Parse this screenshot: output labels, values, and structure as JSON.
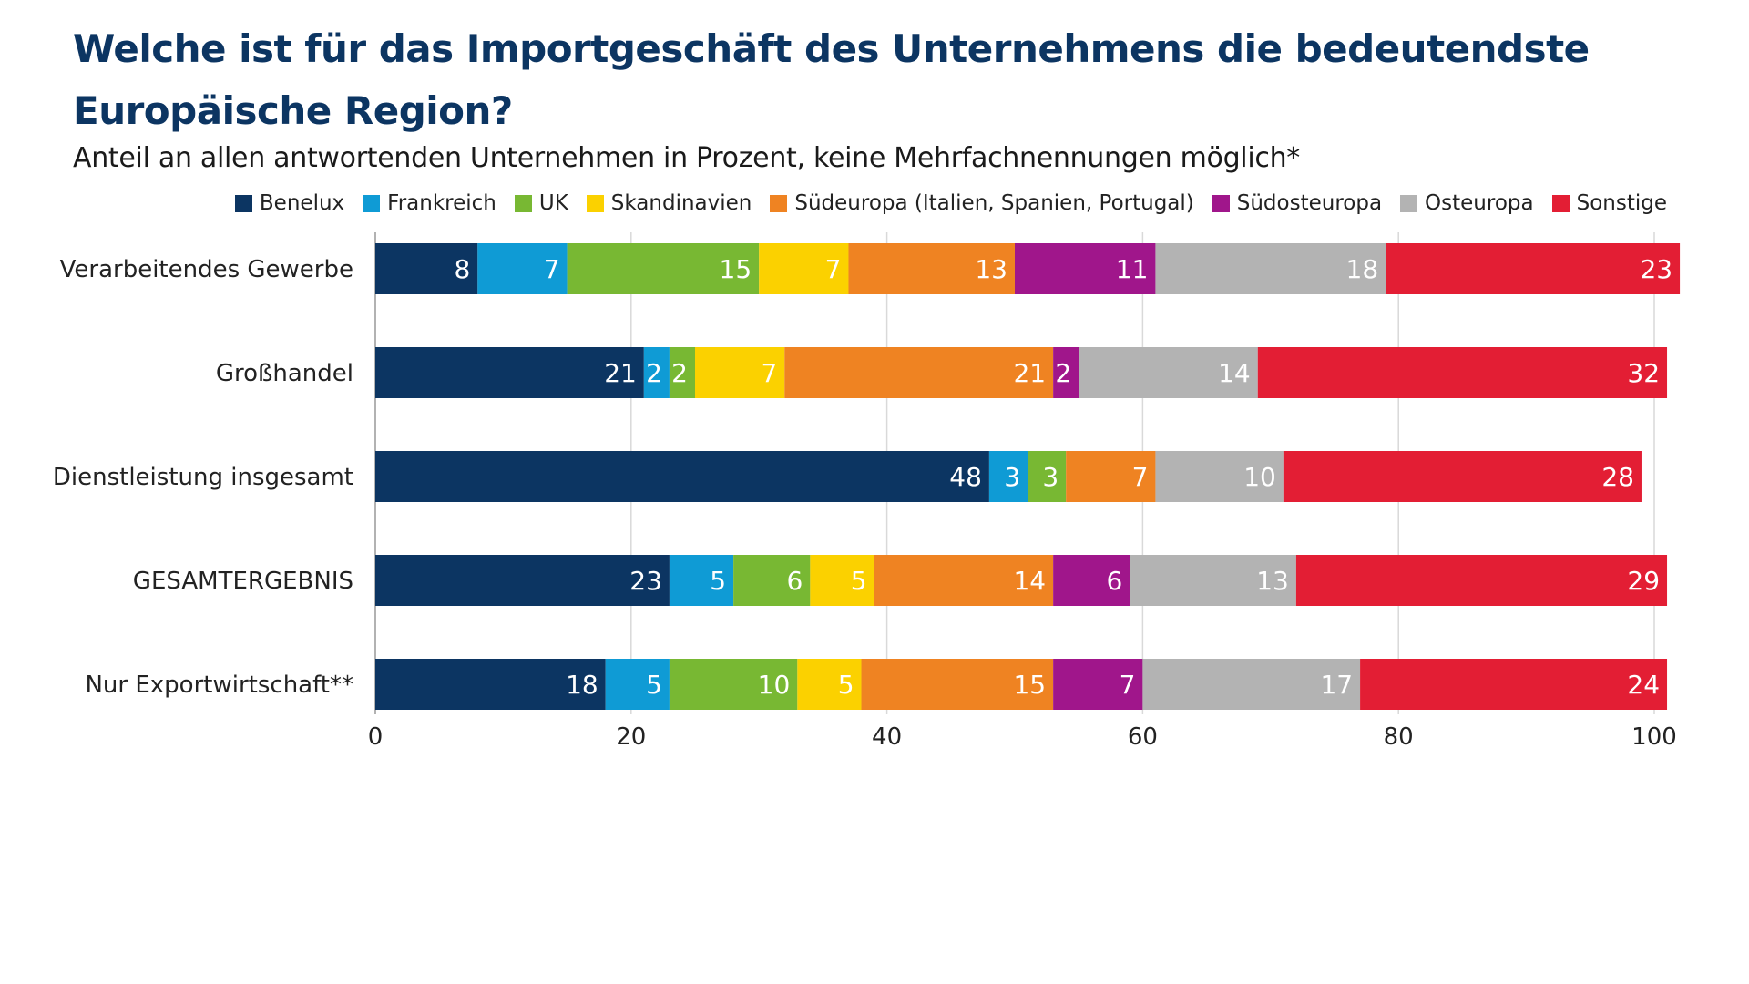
{
  "title": "Welche ist für das Importgeschäft des Unternehmens die bedeutendste Europäische Region?",
  "subtitle": "Anteil an allen antwortenden Unternehmen in Prozent, keine Mehrfachnennungen möglich*",
  "colors": {
    "Benelux": "#0c3562",
    "Frankreich": "#0f9bd5",
    "UK": "#78b833",
    "Skandinavien": "#fbd100",
    "Südeuropa (Italien, Spanien, Portugal)": "#ef8322",
    "Südosteuropa": "#a0168b",
    "Osteuropa": "#b3b3b3",
    "Sonstige": "#e31e34"
  },
  "chart_data": {
    "type": "bar",
    "orientation": "horizontal",
    "stacked": true,
    "title": "Welche ist für das Importgeschäft des Unternehmens die bedeutendste Europäische Region?",
    "subtitle": "Anteil an allen antwortenden Unternehmen in Prozent, keine Mehrfachnennungen möglich*",
    "categories": [
      "Verarbeitendes Gewerbe",
      "Großhandel",
      "Dienstleistung insgesamt",
      "GESAMTERGEBNIS",
      "Nur Exportwirtschaft**"
    ],
    "series": [
      {
        "name": "Benelux",
        "values": [
          8,
          21,
          48,
          23,
          18
        ]
      },
      {
        "name": "Frankreich",
        "values": [
          7,
          2,
          3,
          5,
          5
        ]
      },
      {
        "name": "UK",
        "values": [
          15,
          2,
          3,
          6,
          10
        ]
      },
      {
        "name": "Skandinavien",
        "values": [
          7,
          7,
          0,
          5,
          5
        ]
      },
      {
        "name": "Südeuropa (Italien, Spanien, Portugal)",
        "values": [
          13,
          21,
          7,
          14,
          15
        ]
      },
      {
        "name": "Südosteuropa",
        "values": [
          11,
          2,
          0,
          6,
          7
        ]
      },
      {
        "name": "Osteuropa",
        "values": [
          18,
          14,
          10,
          13,
          17
        ]
      },
      {
        "name": "Sonstige",
        "values": [
          23,
          32,
          28,
          29,
          24
        ]
      }
    ],
    "xlim": [
      0,
      100
    ],
    "xticks": [
      0,
      20,
      40,
      60,
      80,
      100
    ],
    "grid": true,
    "legend": "top"
  }
}
